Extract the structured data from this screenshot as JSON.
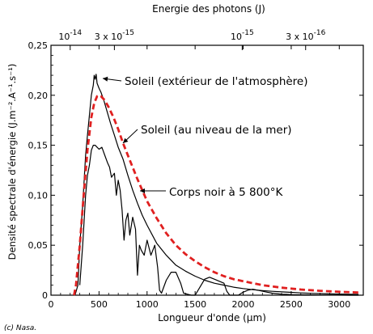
{
  "chart_data": {
    "type": "line",
    "top_axis_title": "Energie des photons (J)",
    "top_ticks": [
      {
        "x": 200,
        "mantissa": "",
        "exp": "-14",
        "base": "10"
      },
      {
        "x": 660,
        "mantissa": "3 x ",
        "exp": "-15",
        "base": "10"
      },
      {
        "x": 1990,
        "mantissa": "",
        "exp": "-15",
        "base": "10"
      },
      {
        "x": 2650,
        "mantissa": "3 x ",
        "exp": "-16",
        "base": "10"
      }
    ],
    "xlabel": "Longueur d'onde (µm)",
    "ylabel": "Densité spectrale d'énergie (J.m⁻².A⁻¹.s⁻¹)",
    "xlim": [
      0,
      3250
    ],
    "ylim": [
      0,
      0.25
    ],
    "x_ticks": [
      0,
      500,
      1000,
      1500,
      2000,
      2500,
      3000
    ],
    "y_ticks": [
      {
        "value": 0,
        "label": "0"
      },
      {
        "value": 0.05,
        "label": "0,05"
      },
      {
        "value": 0.1,
        "label": "0,10"
      },
      {
        "value": 0.15,
        "label": "0,15"
      },
      {
        "value": 0.2,
        "label": "0,20"
      },
      {
        "value": 0.25,
        "label": "0,25"
      }
    ],
    "annotations": [
      {
        "text": "Soleil (extérieur de l'atmosphère)",
        "series": 0
      },
      {
        "text": "Soleil (au niveau de la mer)",
        "series": 1
      },
      {
        "text": "Corps noir à 5 800°K",
        "series": 2
      }
    ],
    "series": [
      {
        "color": "#000000",
        "style": "solid",
        "x": [
          250,
          280,
          300,
          330,
          360,
          380,
          400,
          420,
          440,
          450,
          460,
          470,
          480,
          500,
          520,
          550,
          580,
          620,
          660,
          700,
          750,
          800,
          850,
          900,
          950,
          1000,
          1100,
          1200,
          1300,
          1400,
          1500,
          1600,
          1700,
          1800,
          1900,
          2000,
          2100,
          2200,
          2300,
          2400,
          2500,
          2600,
          2700,
          2800,
          2900,
          3000,
          3100,
          3200
        ],
        "y": [
          0.0,
          0.01,
          0.05,
          0.09,
          0.14,
          0.16,
          0.18,
          0.2,
          0.21,
          0.22,
          0.216,
          0.221,
          0.212,
          0.207,
          0.203,
          0.195,
          0.185,
          0.172,
          0.16,
          0.148,
          0.136,
          0.12,
          0.105,
          0.092,
          0.08,
          0.07,
          0.052,
          0.04,
          0.03,
          0.024,
          0.019,
          0.015,
          0.012,
          0.01,
          0.008,
          0.0066,
          0.0055,
          0.0046,
          0.0039,
          0.0033,
          0.0028,
          0.0023,
          0.0019,
          0.0016,
          0.0013,
          0.0011,
          0.0009,
          0.0008
        ]
      },
      {
        "color": "#000000",
        "style": "solid",
        "x": [
          300,
          330,
          360,
          380,
          400,
          420,
          440,
          460,
          480,
          500,
          530,
          560,
          590,
          610,
          630,
          660,
          680,
          700,
          720,
          740,
          750,
          760,
          780,
          800,
          820,
          850,
          880,
          900,
          920,
          940,
          970,
          1000,
          1040,
          1080,
          1110,
          1130,
          1150,
          1200,
          1250,
          1300,
          1350,
          1380,
          1420,
          1460,
          1500,
          1550,
          1600,
          1650,
          1700,
          1750,
          1800,
          1830,
          1860,
          1900,
          1950,
          2000,
          2050,
          2100,
          2150,
          2200,
          2250,
          2300,
          2350,
          2400,
          2450,
          2500,
          2600,
          2700,
          2800,
          2900,
          3000,
          3100,
          3200
        ],
        "y": [
          0.01,
          0.05,
          0.1,
          0.12,
          0.13,
          0.145,
          0.15,
          0.15,
          0.148,
          0.146,
          0.148,
          0.14,
          0.132,
          0.128,
          0.118,
          0.122,
          0.1,
          0.115,
          0.105,
          0.085,
          0.07,
          0.055,
          0.075,
          0.082,
          0.06,
          0.078,
          0.066,
          0.02,
          0.05,
          0.045,
          0.04,
          0.055,
          0.04,
          0.05,
          0.028,
          0.005,
          0.002,
          0.015,
          0.023,
          0.023,
          0.012,
          0.002,
          0.001,
          0.0,
          0.0,
          0.008,
          0.016,
          0.018,
          0.016,
          0.014,
          0.012,
          0.004,
          0.0,
          0.0,
          0.0,
          0.003,
          0.005,
          0.006,
          0.005,
          0.004,
          0.003,
          0.002,
          0.0015,
          0.001,
          0.0008,
          0.0006,
          0.0004,
          0.0003,
          0.0002,
          0.0001,
          0.0001,
          0.0,
          0.0
        ]
      },
      {
        "color": "#e02020",
        "style": "dashed",
        "x": [
          240,
          260,
          300,
          340,
          380,
          420,
          450,
          480,
          500,
          520,
          560,
          600,
          650,
          700,
          750,
          800,
          900,
          1000,
          1100,
          1200,
          1300,
          1400,
          1500,
          1600,
          1700,
          1800,
          1900,
          2000,
          2200,
          2400,
          2600,
          2800,
          3000,
          3200
        ],
        "y": [
          0.0,
          0.01,
          0.05,
          0.1,
          0.145,
          0.178,
          0.192,
          0.199,
          0.2,
          0.199,
          0.195,
          0.188,
          0.178,
          0.166,
          0.152,
          0.14,
          0.116,
          0.094,
          0.077,
          0.062,
          0.05,
          0.041,
          0.034,
          0.028,
          0.023,
          0.019,
          0.016,
          0.014,
          0.01,
          0.0075,
          0.0057,
          0.0044,
          0.0034,
          0.0027
        ]
      }
    ]
  },
  "credit": "(c) Nasa."
}
